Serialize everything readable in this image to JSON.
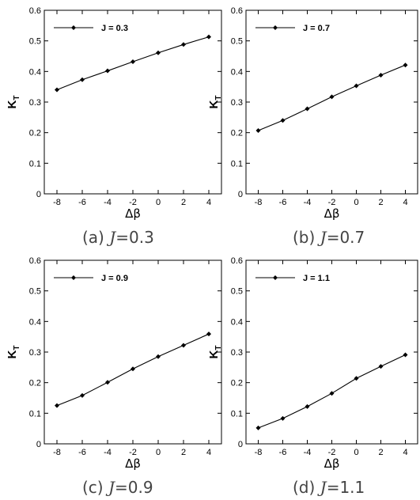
{
  "chart_data": [
    {
      "type": "line",
      "x": [
        -8,
        -6,
        -4,
        -2,
        0,
        2,
        4
      ],
      "series": [
        {
          "name": "J = 0.3",
          "values": [
            0.34,
            0.373,
            0.402,
            0.432,
            0.461,
            0.488,
            0.513
          ]
        }
      ],
      "xlabel": "Δβ",
      "ylabel": "K",
      "ylabel_sub": "T",
      "xlim": [
        -9,
        5
      ],
      "ylim": [
        0,
        0.6
      ],
      "xticks": [
        -8,
        -6,
        -4,
        -2,
        0,
        2,
        4
      ],
      "yticks": [
        0,
        0.1,
        0.2,
        0.3,
        0.4,
        0.5,
        0.6
      ],
      "legend": "top-left",
      "grid": false,
      "caption": {
        "prefix": "(a)",
        "var": "J",
        "value": "=0.3"
      }
    },
    {
      "type": "line",
      "x": [
        -8,
        -6,
        -4,
        -2,
        0,
        2,
        4
      ],
      "series": [
        {
          "name": "J = 0.7",
          "values": [
            0.207,
            0.24,
            0.278,
            0.317,
            0.353,
            0.388,
            0.421
          ]
        }
      ],
      "xlabel": "Δβ",
      "ylabel": "K",
      "ylabel_sub": "T",
      "xlim": [
        -9,
        5
      ],
      "ylim": [
        0,
        0.6
      ],
      "xticks": [
        -8,
        -6,
        -4,
        -2,
        0,
        2,
        4
      ],
      "yticks": [
        0,
        0.1,
        0.2,
        0.3,
        0.4,
        0.5,
        0.6
      ],
      "legend": "top-left",
      "grid": false,
      "caption": {
        "prefix": "(b)",
        "var": "J",
        "value": "=0.7"
      }
    },
    {
      "type": "line",
      "x": [
        -8,
        -6,
        -4,
        -2,
        0,
        2,
        4
      ],
      "series": [
        {
          "name": "J = 0.9",
          "values": [
            0.125,
            0.158,
            0.201,
            0.245,
            0.285,
            0.322,
            0.359
          ]
        }
      ],
      "xlabel": "Δβ",
      "ylabel": "K",
      "ylabel_sub": "T",
      "xlim": [
        -9,
        5
      ],
      "ylim": [
        0,
        0.6
      ],
      "xticks": [
        -8,
        -6,
        -4,
        -2,
        0,
        2,
        4
      ],
      "yticks": [
        0,
        0.1,
        0.2,
        0.3,
        0.4,
        0.5,
        0.6
      ],
      "legend": "top-left",
      "grid": false,
      "caption": {
        "prefix": "(c)",
        "var": "J",
        "value": "=0.9"
      }
    },
    {
      "type": "line",
      "x": [
        -8,
        -6,
        -4,
        -2,
        0,
        2,
        4
      ],
      "series": [
        {
          "name": "J = 1.1",
          "values": [
            0.052,
            0.083,
            0.122,
            0.165,
            0.214,
            0.253,
            0.291
          ]
        }
      ],
      "xlabel": "Δβ",
      "ylabel": "K",
      "ylabel_sub": "T",
      "xlim": [
        -9,
        5
      ],
      "ylim": [
        0,
        0.6
      ],
      "xticks": [
        -8,
        -6,
        -4,
        -2,
        0,
        2,
        4
      ],
      "yticks": [
        0,
        0.1,
        0.2,
        0.3,
        0.4,
        0.5,
        0.6
      ],
      "legend": "top-left",
      "grid": false,
      "caption": {
        "prefix": "(d)",
        "var": "J",
        "value": "=1.1"
      }
    }
  ],
  "colors": {
    "line": "#000000",
    "marker": "#000000",
    "axis": "#000000"
  }
}
